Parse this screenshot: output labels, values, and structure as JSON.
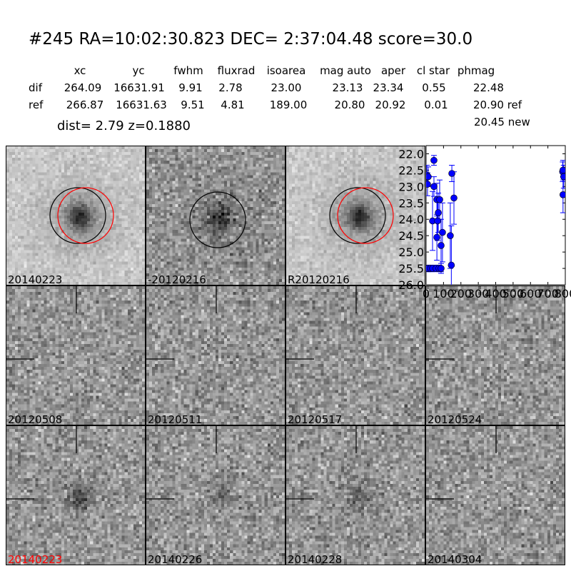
{
  "header": {
    "title": "#245   RA=10:02:30.823 DEC= 2:37:04.48      score=30.0"
  },
  "table": {
    "columns": [
      "xc",
      "yc",
      "fwhm",
      "fluxrad",
      "isoarea",
      "mag auto",
      "aper",
      "cl star",
      "phmag"
    ],
    "rows": [
      {
        "label": "dif",
        "values": [
          "264.09",
          "16631.91",
          "9.91",
          "2.78",
          "23.00",
          "23.13",
          "23.34",
          "0.55",
          "22.48"
        ]
      },
      {
        "label": "ref",
        "values": [
          "266.87",
          "16631.63",
          "9.51",
          "4.81",
          "189.00",
          "20.80",
          "20.92",
          "0.01",
          "20.90 ref"
        ]
      }
    ],
    "extra": "20.45 new",
    "dist": "dist=  2.79      z=0.1880"
  },
  "panels": [
    {
      "label": "20140223",
      "label_color": "#000000",
      "circles": [
        "black",
        "red"
      ]
    },
    {
      "label": "-20120216",
      "label_color": "#000000",
      "circles": [
        "black"
      ]
    },
    {
      "label": "R20120216",
      "label_color": "#000000",
      "circles": [
        "black",
        "red"
      ]
    },
    {
      "label": "20120508",
      "label_color": "#000000",
      "crosshair": true
    },
    {
      "label": "20120511",
      "label_color": "#000000",
      "crosshair": true
    },
    {
      "label": "20120517",
      "label_color": "#000000",
      "crosshair": true
    },
    {
      "label": "20120524",
      "label_color": "#000000",
      "crosshair": true
    },
    {
      "label": "20140223",
      "label_color": "#ff0000",
      "crosshair": true
    },
    {
      "label": "20140226",
      "label_color": "#000000",
      "crosshair": true
    },
    {
      "label": "20140228",
      "label_color": "#000000",
      "crosshair": true
    },
    {
      "label": "20140304",
      "label_color": "#000000",
      "crosshair": true
    }
  ],
  "chart_data": {
    "type": "scatter",
    "xlim": [
      0,
      800
    ],
    "ylim": [
      21.75,
      26.0
    ],
    "y_inverted": true,
    "xticks": [
      "0",
      "100",
      "200",
      "300",
      "400",
      "500",
      "600",
      "700",
      "800"
    ],
    "yticks": [
      "22.0",
      "22.5",
      "23.0",
      "23.5",
      "24.0",
      "24.5",
      "25.0",
      "25.5",
      "26.0"
    ],
    "color": "#0000ff",
    "points": [
      {
        "x": 4,
        "y": 22.65,
        "err": 0.3
      },
      {
        "x": 12,
        "y": 22.7,
        "err": 0.3
      },
      {
        "x": 8,
        "y": 22.93,
        "err": 0.35
      },
      {
        "x": 45,
        "y": 22.2,
        "err": 0.15
      },
      {
        "x": 45,
        "y": 23.0,
        "err": 0.3
      },
      {
        "x": 37,
        "y": 24.05,
        "err": 0.9
      },
      {
        "x": 62,
        "y": 23.4,
        "err": 0.5
      },
      {
        "x": 66,
        "y": 24.05,
        "err": 0.6
      },
      {
        "x": 62,
        "y": 24.55,
        "err": 0.7
      },
      {
        "x": 70,
        "y": 23.8,
        "err": 0.6
      },
      {
        "x": 78,
        "y": 23.4,
        "err": 0.6
      },
      {
        "x": 86,
        "y": 24.8,
        "err": 0.8
      },
      {
        "x": 94,
        "y": 24.4,
        "err": 0.9
      },
      {
        "x": 139,
        "y": 24.5,
        "err": 1.0
      },
      {
        "x": 148,
        "y": 22.6,
        "err": 0.25
      },
      {
        "x": 145,
        "y": 25.4,
        "err": 1.2
      },
      {
        "x": 160,
        "y": 23.35,
        "err": 0.8
      },
      {
        "x": 4,
        "y": 25.5,
        "err": 0.1
      },
      {
        "x": 12,
        "y": 25.5,
        "err": 0.1
      },
      {
        "x": 25,
        "y": 25.5,
        "err": 0.1
      },
      {
        "x": 37,
        "y": 25.5,
        "err": 0.1
      },
      {
        "x": 57,
        "y": 25.5,
        "err": 0.1
      },
      {
        "x": 74,
        "y": 25.5,
        "err": 0.1
      },
      {
        "x": 86,
        "y": 25.5,
        "err": 0.15
      },
      {
        "x": 785,
        "y": 22.55,
        "err": 0.3
      },
      {
        "x": 787,
        "y": 22.5,
        "err": 0.3
      },
      {
        "x": 791,
        "y": 22.7,
        "err": 0.35
      },
      {
        "x": 787,
        "y": 23.25,
        "err": 0.55
      }
    ]
  }
}
